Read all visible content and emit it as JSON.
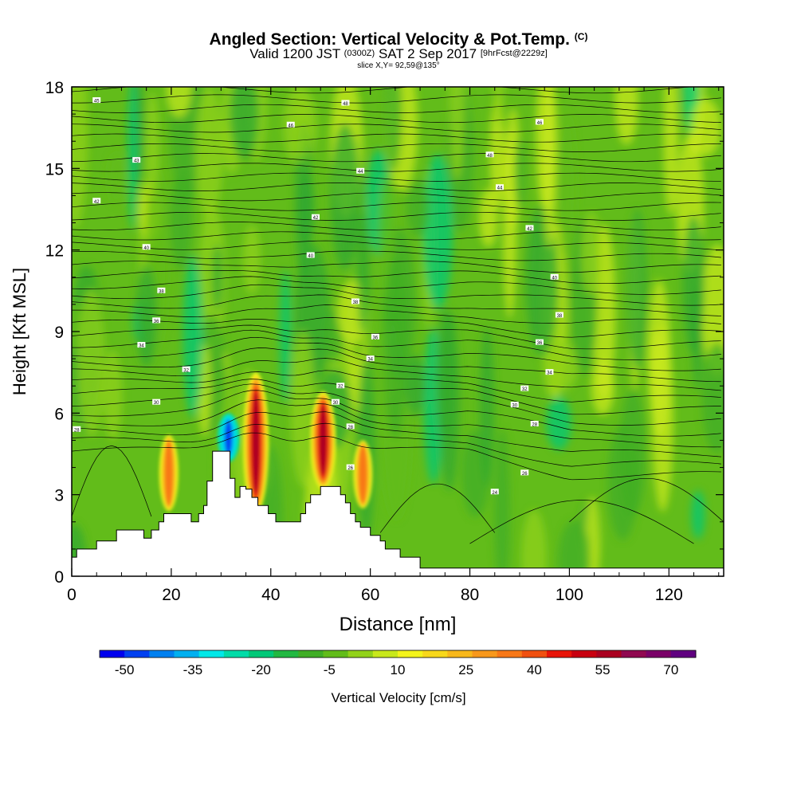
{
  "title": {
    "main": "Angled Section: Vertical Velocity & Pot.Temp.",
    "main_suffix": "(C)",
    "valid_prefix": "Valid 1200 JST",
    "valid_zulu": "(0300Z)",
    "valid_date": "SAT 2 Sep 2017",
    "valid_fcst": "[9hrFcst@2229z]",
    "slice": "slice X,Y= 92,59@135°"
  },
  "chart_data": {
    "type": "heatmap",
    "xlabel": "Distance [nm]",
    "ylabel": "Height [Kft MSL]",
    "xlim": [
      0,
      131
    ],
    "ylim": [
      0,
      18
    ],
    "xticks": [
      0,
      20,
      40,
      60,
      80,
      100,
      120
    ],
    "yticks": [
      0,
      3,
      6,
      9,
      12,
      15,
      18
    ],
    "grid": false,
    "background_field": "Vertical Velocity (shaded, mostly -5 to 10 cm/s)",
    "updrafts": [
      {
        "x": 19.5,
        "y_bottom": 2.4,
        "y_top": 5.2,
        "peak": 30
      },
      {
        "x": 37,
        "y_bottom": 2.3,
        "y_top": 7.5,
        "peak": 55
      },
      {
        "x": 50.5,
        "y_bottom": 3.2,
        "y_top": 6.8,
        "peak": 55
      },
      {
        "x": 58.5,
        "y_bottom": 2.5,
        "y_top": 5.0,
        "peak": 25
      }
    ],
    "downdrafts": [
      {
        "x": 31.5,
        "y_bottom": 4.2,
        "y_top": 6.0,
        "peak": -35
      }
    ],
    "terrain_profile": [
      [
        0,
        0.7
      ],
      [
        1,
        1.0
      ],
      [
        5,
        1.3
      ],
      [
        9,
        1.7
      ],
      [
        13,
        1.7
      ],
      [
        14.5,
        1.4
      ],
      [
        16,
        1.7
      ],
      [
        17.5,
        2.0
      ],
      [
        18.5,
        2.3
      ],
      [
        23,
        2.3
      ],
      [
        24,
        2.0
      ],
      [
        25.5,
        2.3
      ],
      [
        26.5,
        2.6
      ],
      [
        27.2,
        3.5
      ],
      [
        28.3,
        4.6
      ],
      [
        30.8,
        4.6
      ],
      [
        31.8,
        3.6
      ],
      [
        32.8,
        2.9
      ],
      [
        33.8,
        3.3
      ],
      [
        35,
        3.2
      ],
      [
        36.2,
        2.9
      ],
      [
        37.4,
        2.6
      ],
      [
        39.5,
        2.3
      ],
      [
        41,
        2.0
      ],
      [
        45,
        2.0
      ],
      [
        46,
        2.3
      ],
      [
        47,
        2.7
      ],
      [
        48,
        3.0
      ],
      [
        50,
        3.3
      ],
      [
        52.5,
        3.3
      ],
      [
        54,
        3.0
      ],
      [
        55,
        2.7
      ],
      [
        56,
        2.3
      ],
      [
        57,
        2.0
      ],
      [
        58,
        1.8
      ],
      [
        60,
        1.5
      ],
      [
        62,
        1.3
      ],
      [
        63,
        1.0
      ],
      [
        66,
        0.7
      ],
      [
        70,
        0.3
      ],
      [
        131,
        0.3
      ]
    ],
    "theta_labels": [
      {
        "x": 5,
        "y": 17.5,
        "label": "45"
      },
      {
        "x": 55,
        "y": 17.4,
        "label": "48"
      },
      {
        "x": 13,
        "y": 15.3,
        "label": "43"
      },
      {
        "x": 44,
        "y": 16.6,
        "label": "46"
      },
      {
        "x": 94,
        "y": 16.7,
        "label": "46"
      },
      {
        "x": 5,
        "y": 13.8,
        "label": "42"
      },
      {
        "x": 58,
        "y": 14.9,
        "label": "44"
      },
      {
        "x": 84,
        "y": 15.5,
        "label": "48"
      },
      {
        "x": 15,
        "y": 12.1,
        "label": "40"
      },
      {
        "x": 49,
        "y": 13.2,
        "label": "42"
      },
      {
        "x": 86,
        "y": 14.3,
        "label": "44"
      },
      {
        "x": 18,
        "y": 10.5,
        "label": "38"
      },
      {
        "x": 48,
        "y": 11.8,
        "label": "40"
      },
      {
        "x": 92,
        "y": 12.8,
        "label": "42"
      },
      {
        "x": 17,
        "y": 9.4,
        "label": "36"
      },
      {
        "x": 57,
        "y": 10.1,
        "label": "38"
      },
      {
        "x": 97,
        "y": 11.0,
        "label": "40"
      },
      {
        "x": 14,
        "y": 8.5,
        "label": "34"
      },
      {
        "x": 61,
        "y": 8.8,
        "label": "36"
      },
      {
        "x": 98,
        "y": 9.6,
        "label": "38"
      },
      {
        "x": 23,
        "y": 7.6,
        "label": "32"
      },
      {
        "x": 60,
        "y": 8.0,
        "label": "34"
      },
      {
        "x": 94,
        "y": 8.6,
        "label": "36"
      },
      {
        "x": 17,
        "y": 6.4,
        "label": "30"
      },
      {
        "x": 54,
        "y": 7.0,
        "label": "32"
      },
      {
        "x": 96,
        "y": 7.5,
        "label": "34"
      },
      {
        "x": 1,
        "y": 5.4,
        "label": "28"
      },
      {
        "x": 53,
        "y": 6.4,
        "label": "30"
      },
      {
        "x": 91,
        "y": 6.9,
        "label": "32"
      },
      {
        "x": 56,
        "y": 5.5,
        "label": "28"
      },
      {
        "x": 89,
        "y": 6.3,
        "label": "30"
      },
      {
        "x": 56,
        "y": 4.0,
        "label": "26"
      },
      {
        "x": 93,
        "y": 5.6,
        "label": "28"
      },
      {
        "x": 91,
        "y": 3.8,
        "label": "26"
      },
      {
        "x": 85,
        "y": 3.1,
        "label": "24"
      }
    ]
  },
  "colorbar": {
    "label": "Vertical Velocity [cm/s]",
    "tick_labels": [
      "-50",
      "-35",
      "-20",
      "-5",
      "10",
      "25",
      "40",
      "55",
      "70"
    ],
    "colors": [
      "#0000ee",
      "#0040f0",
      "#0080f0",
      "#00b0f0",
      "#00e8e8",
      "#00dca8",
      "#00c878",
      "#22b842",
      "#40ae26",
      "#62bc1a",
      "#92d21a",
      "#c8e81c",
      "#f4f41c",
      "#f8d81c",
      "#f8b81c",
      "#f8981c",
      "#f87818",
      "#f05010",
      "#e81408",
      "#c80010",
      "#aa0020",
      "#900850",
      "#7a0068",
      "#600080"
    ]
  }
}
